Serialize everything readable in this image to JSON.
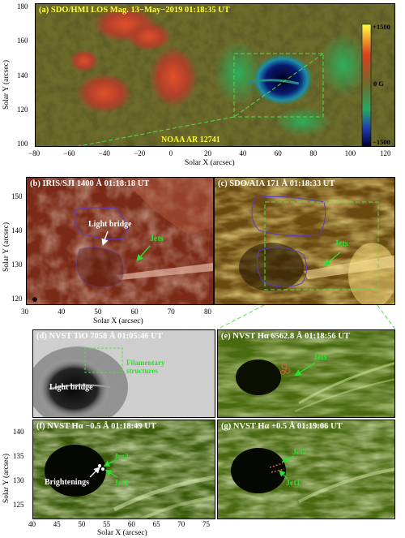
{
  "panels": {
    "a": {
      "title": "(a) SDO/HMI LOS Mag. 13−May−2019 01:18:35 UT",
      "region": "NOAA AR 12741",
      "colorbar": {
        "max": "+1500",
        "mid": "0 G",
        "min": "−1500"
      },
      "x_ticks": [
        "−80",
        "−60",
        "−40",
        "−20",
        "0",
        "20",
        "40",
        "60",
        "80",
        "100",
        "120"
      ],
      "y_ticks": [
        "180",
        "160",
        "140",
        "120",
        "100"
      ],
      "xlabel": "Solar X (arcsec)",
      "ylabel": "Solar Y (arcsec)"
    },
    "b": {
      "title": "(b) IRIS/SJI 1400 Å  01:18:18 UT",
      "label_light_bridge": "Light bridge",
      "label_jets": "Jets",
      "x_ticks": [
        "30",
        "40",
        "50",
        "60",
        "70",
        "80"
      ],
      "y_ticks": [
        "150",
        "140",
        "130",
        "120"
      ],
      "xlabel": "Solar X (arcsec)",
      "ylabel": "Solar Y (arcsec)"
    },
    "c": {
      "title": "(c) SDO/AIA 171 Å  01:18:33 UT",
      "label_jets": "Jets"
    },
    "d": {
      "title": "(d) NVST TiO 7058 Å  01:05:46 UT",
      "label_light_bridge": "Light bridge",
      "label_filament": "Filamentary\nstructures"
    },
    "e": {
      "title": "(e) NVST Hα 6562.8 Å  01:18:56 UT",
      "label_jets": "Jets"
    },
    "f": {
      "title": "(f) NVST Hα −0.5 Å  01:18:49 UT",
      "label_jet2": "Jet2",
      "label_jet1": "Jet1",
      "label_brightenings": "Brightenings",
      "x_ticks": [
        "40",
        "45",
        "50",
        "55",
        "60",
        "65",
        "70",
        "75"
      ],
      "y_ticks": [
        "140",
        "135",
        "130",
        "125"
      ],
      "xlabel": "Solar X (arcsec)",
      "ylabel": "Solar Y (arcsec)"
    },
    "g": {
      "title": "(g) NVST Hα +0.5 Å  01:19:06 UT",
      "label_jet2": "Jet2",
      "label_jet1": "Jet1"
    }
  },
  "colors": {
    "yellow_title": "#ffff3c",
    "white_title": "#ffffff",
    "green_label": "#2ee02e",
    "purple_contour": "#5a3cc8"
  }
}
